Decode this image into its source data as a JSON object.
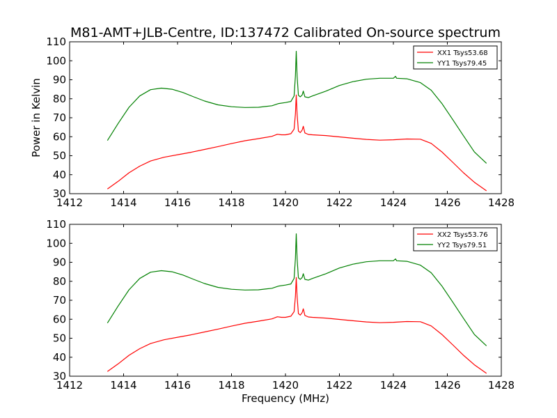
{
  "figure": {
    "title": "M81-AMT+JLB-Centre, ID:137472 Calibrated On-source spectrum",
    "xlabel": "Frequency (MHz)",
    "ylabel": "Power in Kelvin"
  },
  "colors": {
    "xx": "#ff0000",
    "yy": "#008000",
    "axes": "#000000",
    "background": "#ffffff"
  },
  "chart_data": [
    {
      "type": "line",
      "title": "M81-AMT+JLB-Centre, ID:137472 Calibrated On-source spectrum",
      "xlabel": "",
      "ylabel": "Power in Kelvin",
      "xlim": [
        1412,
        1428
      ],
      "ylim": [
        30,
        110
      ],
      "xticks": [
        1412,
        1414,
        1416,
        1418,
        1420,
        1422,
        1424,
        1426,
        1428
      ],
      "yticks": [
        30,
        40,
        50,
        60,
        70,
        80,
        90,
        100,
        110
      ],
      "grid": false,
      "legend_position": "top-right",
      "series": [
        {
          "name": "XX1 Tsys53.68",
          "color": "#ff0000",
          "x": [
            1413.4,
            1413.8,
            1414.2,
            1414.6,
            1415.0,
            1415.5,
            1416.0,
            1416.5,
            1417.0,
            1417.5,
            1418.0,
            1418.5,
            1419.0,
            1419.5,
            1419.7,
            1419.85,
            1420.0,
            1420.2,
            1420.32,
            1420.37,
            1420.4,
            1420.43,
            1420.48,
            1420.55,
            1420.62,
            1420.66,
            1420.72,
            1420.85,
            1421.0,
            1421.5,
            1422.0,
            1422.5,
            1423.0,
            1423.5,
            1424.0,
            1424.5,
            1425.0,
            1425.4,
            1425.8,
            1426.2,
            1426.6,
            1427.0,
            1427.45
          ],
          "y": [
            32.5,
            36.5,
            41.0,
            44.5,
            47.2,
            49.2,
            50.5,
            51.8,
            53.3,
            54.8,
            56.4,
            57.9,
            59.0,
            60.2,
            61.3,
            61.0,
            61.0,
            61.6,
            64.0,
            72.0,
            82.0,
            72.0,
            63.0,
            62.2,
            63.5,
            65.5,
            62.0,
            61.2,
            61.0,
            60.6,
            59.9,
            59.2,
            58.6,
            58.2,
            58.4,
            58.8,
            58.7,
            56.5,
            52.0,
            46.5,
            41.0,
            36.0,
            31.5
          ]
        },
        {
          "name": "YY1 Tsys79.45",
          "color": "#008000",
          "x": [
            1413.4,
            1413.8,
            1414.2,
            1414.6,
            1415.0,
            1415.4,
            1415.8,
            1416.2,
            1416.6,
            1417.0,
            1417.5,
            1418.0,
            1418.5,
            1419.0,
            1419.5,
            1419.75,
            1420.0,
            1420.2,
            1420.32,
            1420.37,
            1420.4,
            1420.43,
            1420.48,
            1420.55,
            1420.62,
            1420.66,
            1420.72,
            1420.85,
            1421.0,
            1421.5,
            1422.0,
            1422.5,
            1423.0,
            1423.5,
            1424.0,
            1424.08,
            1424.12,
            1424.5,
            1425.0,
            1425.4,
            1425.8,
            1426.2,
            1426.6,
            1427.0,
            1427.45
          ],
          "y": [
            58.0,
            67.0,
            75.5,
            81.5,
            84.8,
            85.6,
            85.0,
            83.3,
            81.0,
            78.8,
            76.8,
            75.8,
            75.4,
            75.5,
            76.3,
            77.5,
            78.0,
            78.6,
            81.5,
            92.0,
            105.0,
            92.0,
            81.8,
            81.0,
            82.0,
            84.0,
            81.0,
            80.6,
            81.5,
            84.0,
            87.0,
            89.0,
            90.3,
            90.8,
            90.8,
            91.8,
            90.8,
            90.5,
            88.5,
            84.5,
            77.5,
            69.0,
            60.5,
            52.0,
            46.0
          ]
        }
      ]
    },
    {
      "type": "line",
      "title": "",
      "xlabel": "Frequency (MHz)",
      "ylabel": "",
      "xlim": [
        1412,
        1428
      ],
      "ylim": [
        30,
        110
      ],
      "xticks": [
        1412,
        1414,
        1416,
        1418,
        1420,
        1422,
        1424,
        1426,
        1428
      ],
      "yticks": [
        30,
        40,
        50,
        60,
        70,
        80,
        90,
        100,
        110
      ],
      "grid": false,
      "legend_position": "top-right",
      "series": [
        {
          "name": "XX2 Tsys53.76",
          "color": "#ff0000",
          "x": [
            1413.4,
            1413.8,
            1414.2,
            1414.6,
            1415.0,
            1415.5,
            1416.0,
            1416.5,
            1417.0,
            1417.5,
            1418.0,
            1418.5,
            1419.0,
            1419.5,
            1419.7,
            1419.85,
            1420.0,
            1420.2,
            1420.32,
            1420.37,
            1420.4,
            1420.43,
            1420.48,
            1420.55,
            1420.62,
            1420.66,
            1420.72,
            1420.85,
            1421.0,
            1421.5,
            1422.0,
            1422.5,
            1423.0,
            1423.5,
            1424.0,
            1424.5,
            1425.0,
            1425.4,
            1425.8,
            1426.2,
            1426.6,
            1427.0,
            1427.45
          ],
          "y": [
            32.5,
            36.5,
            41.0,
            44.5,
            47.2,
            49.2,
            50.5,
            51.8,
            53.3,
            54.8,
            56.4,
            57.9,
            59.0,
            60.2,
            61.3,
            61.0,
            61.0,
            61.6,
            64.0,
            72.0,
            82.0,
            72.0,
            63.0,
            62.2,
            63.5,
            65.5,
            62.0,
            61.2,
            61.0,
            60.6,
            59.9,
            59.2,
            58.6,
            58.2,
            58.4,
            58.8,
            58.7,
            56.5,
            52.0,
            46.5,
            41.0,
            36.0,
            31.5
          ]
        },
        {
          "name": "YY2 Tsys79.51",
          "color": "#008000",
          "x": [
            1413.4,
            1413.8,
            1414.2,
            1414.6,
            1415.0,
            1415.4,
            1415.8,
            1416.2,
            1416.6,
            1417.0,
            1417.5,
            1418.0,
            1418.5,
            1419.0,
            1419.5,
            1419.75,
            1420.0,
            1420.2,
            1420.32,
            1420.37,
            1420.4,
            1420.43,
            1420.48,
            1420.55,
            1420.62,
            1420.66,
            1420.72,
            1420.85,
            1421.0,
            1421.5,
            1422.0,
            1422.5,
            1423.0,
            1423.5,
            1424.0,
            1424.08,
            1424.12,
            1424.5,
            1425.0,
            1425.4,
            1425.8,
            1426.2,
            1426.6,
            1427.0,
            1427.45
          ],
          "y": [
            58.0,
            67.0,
            75.5,
            81.5,
            84.8,
            85.6,
            85.0,
            83.3,
            81.0,
            78.8,
            76.8,
            75.8,
            75.4,
            75.5,
            76.3,
            77.5,
            78.0,
            78.6,
            81.5,
            92.0,
            105.0,
            92.0,
            81.8,
            81.0,
            82.0,
            84.0,
            81.0,
            80.6,
            81.5,
            84.0,
            87.0,
            89.0,
            90.3,
            90.8,
            90.8,
            91.8,
            90.8,
            90.5,
            88.5,
            84.5,
            77.5,
            69.0,
            60.5,
            52.0,
            46.0
          ]
        }
      ]
    }
  ]
}
